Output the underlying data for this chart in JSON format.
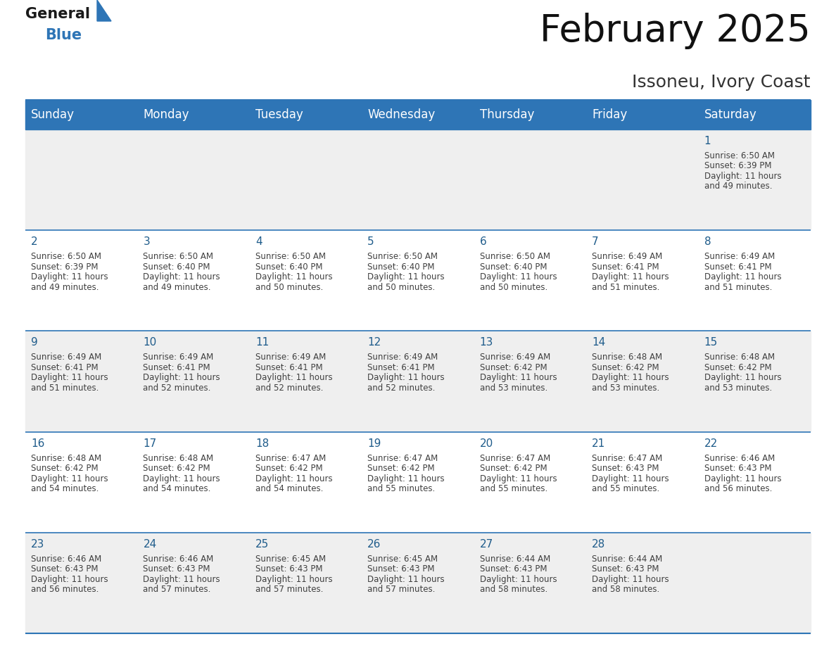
{
  "title": "February 2025",
  "subtitle": "Issoneu, Ivory Coast",
  "header_color": "#2e75b6",
  "header_text_color": "#ffffff",
  "days_of_week": [
    "Sunday",
    "Monday",
    "Tuesday",
    "Wednesday",
    "Thursday",
    "Friday",
    "Saturday"
  ],
  "bg_color": "#ffffff",
  "cell_bg_even": "#efefef",
  "cell_bg_odd": "#ffffff",
  "border_color": "#2e75b6",
  "day_number_color": "#1f5c8b",
  "info_text_color": "#404040",
  "calendar_data": [
    [
      null,
      null,
      null,
      null,
      null,
      null,
      {
        "day": 1,
        "sunrise": "6:50 AM",
        "sunset": "6:39 PM",
        "daylight_line1": "11 hours",
        "daylight_line2": "and 49 minutes."
      }
    ],
    [
      {
        "day": 2,
        "sunrise": "6:50 AM",
        "sunset": "6:39 PM",
        "daylight_line1": "11 hours",
        "daylight_line2": "and 49 minutes."
      },
      {
        "day": 3,
        "sunrise": "6:50 AM",
        "sunset": "6:40 PM",
        "daylight_line1": "11 hours",
        "daylight_line2": "and 49 minutes."
      },
      {
        "day": 4,
        "sunrise": "6:50 AM",
        "sunset": "6:40 PM",
        "daylight_line1": "11 hours",
        "daylight_line2": "and 50 minutes."
      },
      {
        "day": 5,
        "sunrise": "6:50 AM",
        "sunset": "6:40 PM",
        "daylight_line1": "11 hours",
        "daylight_line2": "and 50 minutes."
      },
      {
        "day": 6,
        "sunrise": "6:50 AM",
        "sunset": "6:40 PM",
        "daylight_line1": "11 hours",
        "daylight_line2": "and 50 minutes."
      },
      {
        "day": 7,
        "sunrise": "6:49 AM",
        "sunset": "6:41 PM",
        "daylight_line1": "11 hours",
        "daylight_line2": "and 51 minutes."
      },
      {
        "day": 8,
        "sunrise": "6:49 AM",
        "sunset": "6:41 PM",
        "daylight_line1": "11 hours",
        "daylight_line2": "and 51 minutes."
      }
    ],
    [
      {
        "day": 9,
        "sunrise": "6:49 AM",
        "sunset": "6:41 PM",
        "daylight_line1": "11 hours",
        "daylight_line2": "and 51 minutes."
      },
      {
        "day": 10,
        "sunrise": "6:49 AM",
        "sunset": "6:41 PM",
        "daylight_line1": "11 hours",
        "daylight_line2": "and 52 minutes."
      },
      {
        "day": 11,
        "sunrise": "6:49 AM",
        "sunset": "6:41 PM",
        "daylight_line1": "11 hours",
        "daylight_line2": "and 52 minutes."
      },
      {
        "day": 12,
        "sunrise": "6:49 AM",
        "sunset": "6:41 PM",
        "daylight_line1": "11 hours",
        "daylight_line2": "and 52 minutes."
      },
      {
        "day": 13,
        "sunrise": "6:49 AM",
        "sunset": "6:42 PM",
        "daylight_line1": "11 hours",
        "daylight_line2": "and 53 minutes."
      },
      {
        "day": 14,
        "sunrise": "6:48 AM",
        "sunset": "6:42 PM",
        "daylight_line1": "11 hours",
        "daylight_line2": "and 53 minutes."
      },
      {
        "day": 15,
        "sunrise": "6:48 AM",
        "sunset": "6:42 PM",
        "daylight_line1": "11 hours",
        "daylight_line2": "and 53 minutes."
      }
    ],
    [
      {
        "day": 16,
        "sunrise": "6:48 AM",
        "sunset": "6:42 PM",
        "daylight_line1": "11 hours",
        "daylight_line2": "and 54 minutes."
      },
      {
        "day": 17,
        "sunrise": "6:48 AM",
        "sunset": "6:42 PM",
        "daylight_line1": "11 hours",
        "daylight_line2": "and 54 minutes."
      },
      {
        "day": 18,
        "sunrise": "6:47 AM",
        "sunset": "6:42 PM",
        "daylight_line1": "11 hours",
        "daylight_line2": "and 54 minutes."
      },
      {
        "day": 19,
        "sunrise": "6:47 AM",
        "sunset": "6:42 PM",
        "daylight_line1": "11 hours",
        "daylight_line2": "and 55 minutes."
      },
      {
        "day": 20,
        "sunrise": "6:47 AM",
        "sunset": "6:42 PM",
        "daylight_line1": "11 hours",
        "daylight_line2": "and 55 minutes."
      },
      {
        "day": 21,
        "sunrise": "6:47 AM",
        "sunset": "6:43 PM",
        "daylight_line1": "11 hours",
        "daylight_line2": "and 55 minutes."
      },
      {
        "day": 22,
        "sunrise": "6:46 AM",
        "sunset": "6:43 PM",
        "daylight_line1": "11 hours",
        "daylight_line2": "and 56 minutes."
      }
    ],
    [
      {
        "day": 23,
        "sunrise": "6:46 AM",
        "sunset": "6:43 PM",
        "daylight_line1": "11 hours",
        "daylight_line2": "and 56 minutes."
      },
      {
        "day": 24,
        "sunrise": "6:46 AM",
        "sunset": "6:43 PM",
        "daylight_line1": "11 hours",
        "daylight_line2": "and 57 minutes."
      },
      {
        "day": 25,
        "sunrise": "6:45 AM",
        "sunset": "6:43 PM",
        "daylight_line1": "11 hours",
        "daylight_line2": "and 57 minutes."
      },
      {
        "day": 26,
        "sunrise": "6:45 AM",
        "sunset": "6:43 PM",
        "daylight_line1": "11 hours",
        "daylight_line2": "and 57 minutes."
      },
      {
        "day": 27,
        "sunrise": "6:44 AM",
        "sunset": "6:43 PM",
        "daylight_line1": "11 hours",
        "daylight_line2": "and 58 minutes."
      },
      {
        "day": 28,
        "sunrise": "6:44 AM",
        "sunset": "6:43 PM",
        "daylight_line1": "11 hours",
        "daylight_line2": "and 58 minutes."
      },
      null
    ]
  ],
  "logo_color_general": "#1a1a1a",
  "logo_color_blue": "#2e75b6",
  "logo_triangle_color": "#2e75b6",
  "title_fontsize": 38,
  "subtitle_fontsize": 18,
  "header_fontsize": 12,
  "day_num_fontsize": 11,
  "info_fontsize": 8.5
}
